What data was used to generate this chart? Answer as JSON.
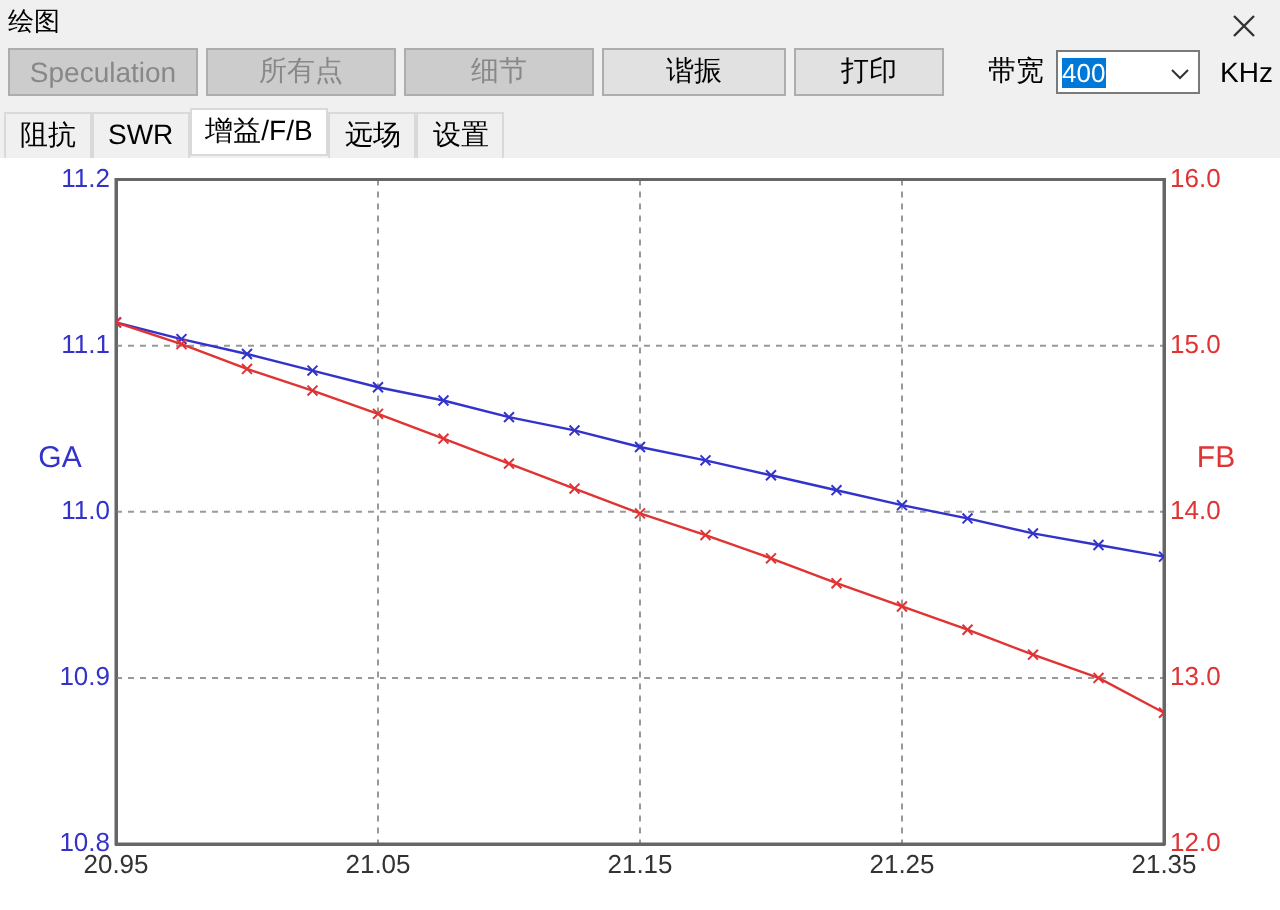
{
  "chart_data": {
    "type": "line",
    "title": "绘图",
    "annotations": [
      "Speculation",
      "所有点",
      "细节",
      "谐振",
      "打印",
      "带宽",
      "400",
      "KHz",
      "阻抗",
      "SWR",
      "增益/F/B",
      "远场",
      "设置"
    ],
    "x": [
      20.95,
      20.975,
      21.0,
      21.025,
      21.05,
      21.075,
      21.1,
      21.125,
      21.15,
      21.175,
      21.2,
      21.225,
      21.25,
      21.275,
      21.3,
      21.325,
      21.35
    ],
    "series": [
      {
        "color": "#3333cc",
        "values": [
          11.114,
          11.104,
          11.095,
          11.085,
          11.075,
          11.067,
          11.057,
          11.049,
          11.039,
          11.031,
          11.022,
          11.013,
          11.004,
          10.996,
          10.987,
          10.98,
          10.973
        ]
      },
      {
        "color": "#e03333",
        "axis": "y2",
        "values": [
          15.14,
          15.01,
          14.86,
          14.73,
          14.59,
          14.44,
          14.29,
          14.14,
          13.99,
          13.86,
          13.72,
          13.57,
          13.43,
          13.29,
          13.14,
          13.0,
          12.79
        ]
      }
    ],
    "ylabel": "GA",
    "y2label": "FB",
    "xlim": [
      20.95,
      21.35
    ],
    "xticks": [
      20.95,
      21.05,
      21.15,
      21.25,
      21.35
    ],
    "ylim": [
      10.8,
      11.2
    ],
    "yticks": [
      10.8,
      10.9,
      {
        "value": 11.0,
        "label": "11.0"
      },
      11.1,
      11.2
    ],
    "y2lim": [
      12,
      16
    ],
    "y2ticks": [
      {
        "value": 12,
        "label": "12.0"
      },
      {
        "value": 13,
        "label": "13.0"
      },
      {
        "value": 14,
        "label": "14.0"
      },
      {
        "value": 15,
        "label": "15.0"
      },
      {
        "value": 16,
        "label": "16.0"
      }
    ],
    "grid": true,
    "legend": false,
    "marker": "cross",
    "line_style": "solid"
  }
}
